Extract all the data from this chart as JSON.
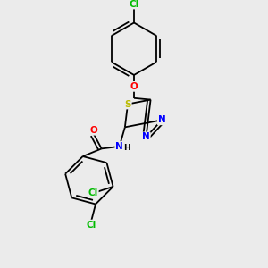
{
  "background_color": "#ebebeb",
  "bond_color": "#000000",
  "atom_colors": {
    "Cl": "#00bb00",
    "O": "#ff0000",
    "S": "#bbbb00",
    "N": "#0000ff",
    "C": "#000000",
    "H": "#000000"
  },
  "figsize": [
    3.0,
    3.0
  ],
  "dpi": 100
}
